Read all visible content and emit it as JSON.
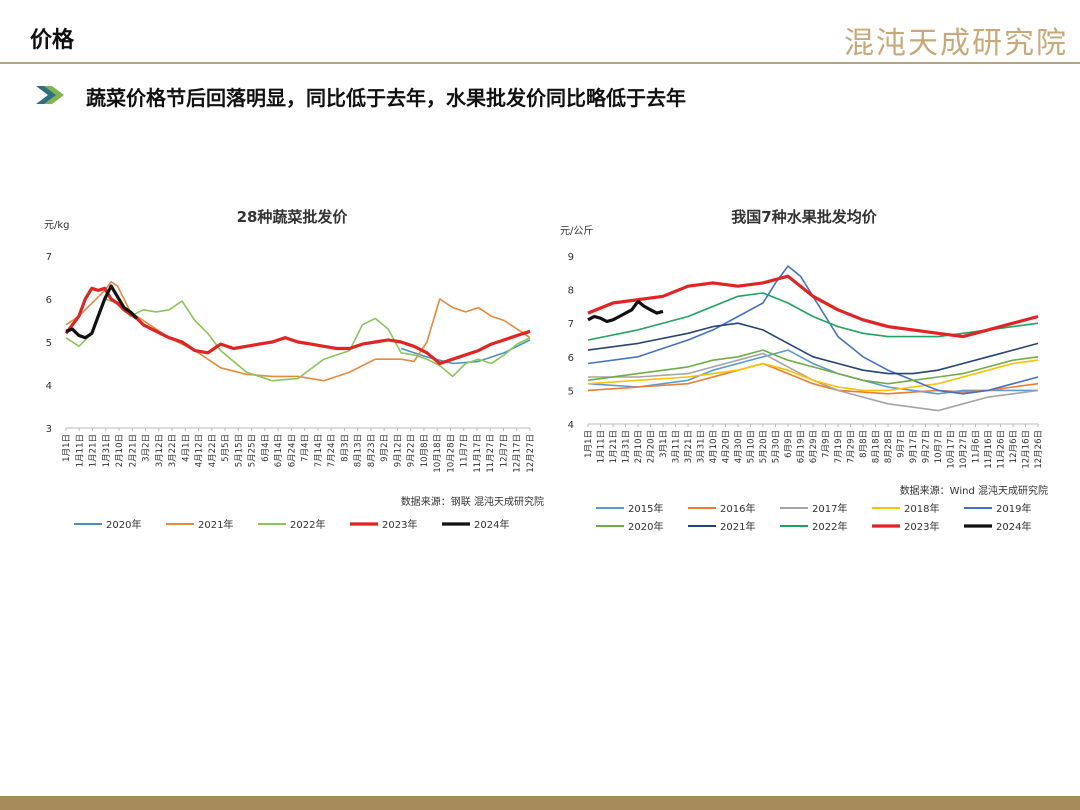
{
  "header": {
    "title": "价格",
    "logo_text": "混沌天成研究院"
  },
  "headline": "蔬菜价格节后回落明显，同比低于去年，水果批发价同比略低于去年",
  "colors": {
    "accent": "#b9a37d",
    "footer": "#a88b5b",
    "bullet": "#2f6f83"
  },
  "chart_data": [
    {
      "type": "line",
      "title": "28种蔬菜批发价",
      "unit": "元/kg",
      "source": "数据来源：钢联  混沌天成研究院",
      "ylim": [
        3,
        7
      ],
      "yticks": [
        "3",
        "4",
        "5",
        "6",
        "7"
      ],
      "xlim": [
        0,
        360
      ],
      "xticks": [
        "1月1日",
        "1月11日",
        "1月21日",
        "1月31日",
        "2月10日",
        "2月21日",
        "3月2日",
        "3月12日",
        "3月22日",
        "4月1日",
        "4月12日",
        "4月22日",
        "5月5日",
        "5月15日",
        "5月25日",
        "6月4日",
        "6月14日",
        "6月24日",
        "7月4日",
        "7月14日",
        "7月24日",
        "8月3日",
        "8月13日",
        "8月23日",
        "9月2日",
        "9月12日",
        "9月22日",
        "10月8日",
        "10月18日",
        "10月28日",
        "11月7日",
        "11月17日",
        "11月27日",
        "12月7日",
        "12月17日",
        "12月27日"
      ],
      "series": [
        {
          "name": "2020年",
          "color": "#4a90c8",
          "x": [
            260,
            280,
            300,
            320,
            340,
            360
          ],
          "y": [
            4.85,
            4.65,
            4.5,
            4.55,
            4.75,
            5.05
          ]
        },
        {
          "name": "2021年",
          "color": "#e88a3c",
          "x": [
            0,
            10,
            20,
            30,
            35,
            40,
            45,
            50,
            60,
            70,
            80,
            100,
            120,
            140,
            160,
            180,
            200,
            220,
            240,
            260,
            270,
            280,
            290,
            300,
            310,
            320,
            330,
            340,
            350,
            360
          ],
          "y": [
            5.4,
            5.6,
            5.9,
            6.2,
            6.4,
            6.3,
            6.0,
            5.7,
            5.5,
            5.3,
            5.1,
            4.8,
            4.4,
            4.25,
            4.2,
            4.2,
            4.1,
            4.3,
            4.6,
            4.6,
            4.55,
            5.0,
            6.0,
            5.8,
            5.7,
            5.8,
            5.6,
            5.5,
            5.3,
            5.1
          ]
        },
        {
          "name": "2022年",
          "color": "#8cc657",
          "x": [
            0,
            10,
            20,
            30,
            40,
            50,
            60,
            70,
            80,
            90,
            100,
            110,
            120,
            140,
            160,
            180,
            200,
            220,
            230,
            240,
            250,
            260,
            270,
            280,
            290,
            300,
            310,
            320,
            330,
            340,
            350,
            360
          ],
          "y": [
            5.1,
            4.9,
            5.2,
            6.0,
            5.9,
            5.6,
            5.75,
            5.7,
            5.75,
            5.95,
            5.5,
            5.2,
            4.8,
            4.3,
            4.1,
            4.15,
            4.6,
            4.8,
            5.4,
            5.55,
            5.3,
            4.75,
            4.7,
            4.6,
            4.45,
            4.2,
            4.5,
            4.6,
            4.5,
            4.7,
            4.95,
            5.1
          ]
        },
        {
          "name": "2023年",
          "color": "#e32222",
          "x": [
            0,
            10,
            15,
            20,
            25,
            30,
            35,
            40,
            45,
            50,
            55,
            60,
            70,
            80,
            90,
            100,
            110,
            120,
            130,
            140,
            150,
            160,
            170,
            180,
            190,
            200,
            210,
            220,
            230,
            240,
            250,
            260,
            270,
            280,
            290,
            300,
            310,
            320,
            330,
            340,
            350,
            360
          ],
          "y": [
            5.2,
            5.6,
            6.0,
            6.25,
            6.2,
            6.25,
            6.0,
            5.9,
            5.75,
            5.65,
            5.55,
            5.4,
            5.25,
            5.1,
            5.0,
            4.8,
            4.75,
            4.95,
            4.85,
            4.9,
            4.95,
            5.0,
            5.1,
            5.0,
            4.95,
            4.9,
            4.85,
            4.85,
            4.95,
            5.0,
            5.05,
            5.0,
            4.9,
            4.75,
            4.5,
            4.6,
            4.7,
            4.8,
            4.95,
            5.05,
            5.15,
            5.25
          ]
        },
        {
          "name": "2024年",
          "color": "#111111",
          "x": [
            0,
            5,
            10,
            15,
            20,
            25,
            30,
            35,
            40,
            45,
            50,
            55
          ],
          "y": [
            5.25,
            5.3,
            5.15,
            5.1,
            5.2,
            5.6,
            6.0,
            6.3,
            6.05,
            5.8,
            5.7,
            5.55
          ]
        }
      ]
    },
    {
      "type": "line",
      "title": "我国7种水果批发均价",
      "unit": "元/公斤",
      "source": "数据来源：Wind  混沌天成研究院",
      "ylim": [
        4,
        9
      ],
      "yticks": [
        "4",
        "5",
        "6",
        "7",
        "8",
        "9"
      ],
      "xlim": [
        0,
        360
      ],
      "xticks": [
        "1月1日",
        "1月11日",
        "1月21日",
        "1月31日",
        "2月10日",
        "2月20日",
        "3月1日",
        "3月11日",
        "3月21日",
        "3月31日",
        "4月10日",
        "4月20日",
        "4月30日",
        "5月10日",
        "5月20日",
        "5月30日",
        "6月9日",
        "6月19日",
        "6月29日",
        "7月9日",
        "7月19日",
        "7月29日",
        "8月8日",
        "8月18日",
        "8月28日",
        "9月7日",
        "9月17日",
        "9月27日",
        "10月7日",
        "10月17日",
        "10月27日",
        "11月6日",
        "11月16日",
        "11月26日",
        "12月6日",
        "12月16日",
        "12月26日"
      ],
      "series": [
        {
          "name": "2015年",
          "color": "#5b9bd5",
          "x": [
            0,
            40,
            80,
            100,
            120,
            140,
            160,
            180,
            200,
            220,
            240,
            260,
            280,
            300,
            320,
            340,
            360
          ],
          "y": [
            5.2,
            5.1,
            5.3,
            5.6,
            5.8,
            6.0,
            6.2,
            5.8,
            5.5,
            5.3,
            5.1,
            5.0,
            4.9,
            5.0,
            5.0,
            5.0,
            5.0
          ]
        },
        {
          "name": "2016年",
          "color": "#ed7d31",
          "x": [
            0,
            40,
            80,
            100,
            120,
            140,
            160,
            180,
            200,
            220,
            240,
            260,
            280,
            300,
            320,
            340,
            360
          ],
          "y": [
            5.0,
            5.1,
            5.2,
            5.4,
            5.6,
            5.8,
            5.5,
            5.2,
            5.0,
            4.95,
            4.9,
            4.95,
            5.0,
            4.95,
            5.0,
            5.1,
            5.2
          ]
        },
        {
          "name": "2017年",
          "color": "#a5a5a5",
          "x": [
            0,
            40,
            80,
            100,
            120,
            140,
            160,
            180,
            200,
            220,
            240,
            260,
            280,
            300,
            320,
            340,
            360
          ],
          "y": [
            5.4,
            5.4,
            5.5,
            5.7,
            5.9,
            6.1,
            5.7,
            5.3,
            5.0,
            4.8,
            4.6,
            4.5,
            4.4,
            4.6,
            4.8,
            4.9,
            5.0
          ]
        },
        {
          "name": "2018年",
          "color": "#ffc000",
          "x": [
            0,
            40,
            80,
            100,
            120,
            140,
            160,
            180,
            200,
            220,
            240,
            260,
            280,
            300,
            320,
            340,
            360
          ],
          "y": [
            5.2,
            5.3,
            5.4,
            5.5,
            5.6,
            5.8,
            5.6,
            5.3,
            5.1,
            5.0,
            5.0,
            5.1,
            5.2,
            5.4,
            5.6,
            5.8,
            5.9
          ]
        },
        {
          "name": "2019年",
          "color": "#4472c4",
          "x": [
            0,
            40,
            80,
            100,
            120,
            140,
            150,
            160,
            170,
            180,
            190,
            200,
            220,
            240,
            260,
            280,
            300,
            320,
            340,
            360
          ],
          "y": [
            5.8,
            6.0,
            6.5,
            6.8,
            7.2,
            7.6,
            8.2,
            8.7,
            8.4,
            7.8,
            7.2,
            6.6,
            6.0,
            5.6,
            5.3,
            5.0,
            4.9,
            5.0,
            5.2,
            5.4
          ]
        },
        {
          "name": "2020年",
          "color": "#70ad47",
          "x": [
            0,
            40,
            80,
            100,
            120,
            140,
            160,
            180,
            200,
            220,
            240,
            260,
            280,
            300,
            320,
            340,
            360
          ],
          "y": [
            5.3,
            5.5,
            5.7,
            5.9,
            6.0,
            6.2,
            5.9,
            5.7,
            5.5,
            5.3,
            5.2,
            5.3,
            5.4,
            5.5,
            5.7,
            5.9,
            6.0
          ]
        },
        {
          "name": "2021年",
          "color": "#264478",
          "x": [
            0,
            40,
            80,
            100,
            120,
            140,
            160,
            180,
            200,
            220,
            240,
            260,
            280,
            300,
            320,
            340,
            360
          ],
          "y": [
            6.2,
            6.4,
            6.7,
            6.9,
            7.0,
            6.8,
            6.4,
            6.0,
            5.8,
            5.6,
            5.5,
            5.5,
            5.6,
            5.8,
            6.0,
            6.2,
            6.4
          ]
        },
        {
          "name": "2022年",
          "color": "#1fa360",
          "x": [
            0,
            40,
            80,
            100,
            120,
            140,
            160,
            180,
            200,
            220,
            240,
            260,
            280,
            300,
            320,
            340,
            360
          ],
          "y": [
            6.5,
            6.8,
            7.2,
            7.5,
            7.8,
            7.9,
            7.6,
            7.2,
            6.9,
            6.7,
            6.6,
            6.6,
            6.6,
            6.7,
            6.8,
            6.9,
            7.0
          ]
        },
        {
          "name": "2023年",
          "color": "#e32222",
          "x": [
            0,
            20,
            40,
            60,
            80,
            100,
            120,
            140,
            150,
            160,
            170,
            180,
            200,
            220,
            240,
            260,
            280,
            300,
            320,
            340,
            360
          ],
          "y": [
            7.3,
            7.6,
            7.7,
            7.8,
            8.1,
            8.2,
            8.1,
            8.2,
            8.3,
            8.4,
            8.1,
            7.8,
            7.4,
            7.1,
            6.9,
            6.8,
            6.7,
            6.6,
            6.8,
            7.0,
            7.2
          ]
        },
        {
          "name": "2024年",
          "color": "#111111",
          "x": [
            0,
            5,
            10,
            15,
            20,
            25,
            30,
            35,
            40,
            45,
            50,
            55,
            60
          ],
          "y": [
            7.1,
            7.2,
            7.15,
            7.05,
            7.1,
            7.2,
            7.3,
            7.4,
            7.65,
            7.5,
            7.4,
            7.3,
            7.35
          ]
        }
      ]
    }
  ]
}
